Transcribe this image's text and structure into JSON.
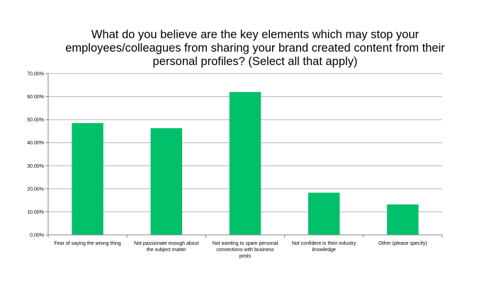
{
  "chart_data": {
    "type": "bar",
    "title_lines": [
      "What do you believe are the key elements which may stop your",
      "employees/colleagues from sharing your brand created content from their",
      "personal profiles? (Select all that apply)"
    ],
    "categories": [
      [
        "Fear of saying the wrong thing"
      ],
      [
        "Not passionate enough about",
        "the subject matter"
      ],
      [
        "Not wanting to spam personal",
        "connections with business",
        "posts"
      ],
      [
        "Not confident in their industry",
        "knowledge"
      ],
      [
        "Other (please specify)"
      ]
    ],
    "values": [
      48.5,
      46.3,
      62.0,
      18.3,
      13.2
    ],
    "yticks": [
      "0.00%",
      "10.00%",
      "20.00%",
      "30.00%",
      "40.00%",
      "50.00%",
      "60.00%",
      "70.00%"
    ],
    "ylim": [
      0,
      70
    ],
    "grid": true,
    "bar_color": "#00c06a",
    "grid_color": "#b3b3b3",
    "axis_color": "#868686"
  }
}
